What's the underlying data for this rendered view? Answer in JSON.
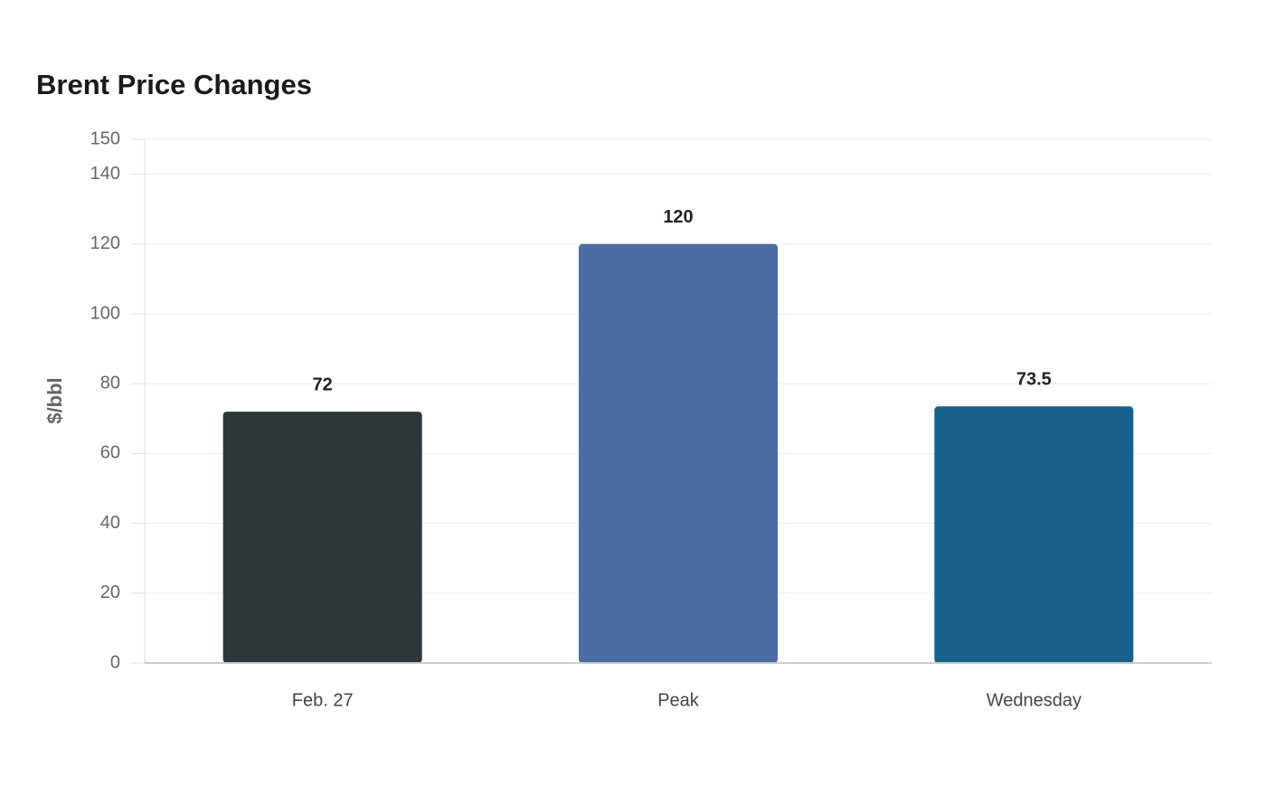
{
  "chart_data": {
    "type": "bar",
    "title": "Brent Price Changes",
    "y_label": "$/bbl",
    "categories": [
      "Feb. 27",
      "Peak",
      "Wednesday"
    ],
    "values": [
      72,
      120,
      73.5
    ],
    "colors": [
      "#2e3638",
      "#4a6ea3",
      "#17608a"
    ],
    "ylim": [
      0,
      150
    ],
    "yticks": [
      0,
      20,
      40,
      60,
      80,
      100,
      120,
      140,
      150
    ],
    "grid": true
  }
}
